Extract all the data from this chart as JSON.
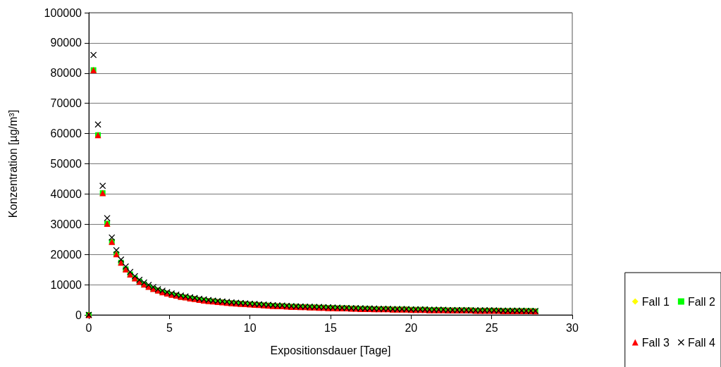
{
  "chart_data": {
    "type": "scatter",
    "xlabel": "Expositionsdauer [Tage]",
    "ylabel": "Konzentration [µg/m³]",
    "x": [
      0,
      0.29,
      0.57,
      0.86,
      1.14,
      1.43,
      1.71,
      2,
      2.29,
      2.57,
      2.86,
      3.14,
      3.43,
      3.71,
      4,
      4.29,
      4.57,
      4.86,
      5.14,
      5.43,
      5.71,
      6,
      6.29,
      6.57,
      6.86,
      7.14,
      7.43,
      7.71,
      8,
      8.29,
      8.57,
      8.86,
      9.14,
      9.43,
      9.71,
      10,
      10.29,
      10.57,
      10.86,
      11.14,
      11.43,
      11.71,
      12,
      12.29,
      12.57,
      12.86,
      13.14,
      13.43,
      13.71,
      14,
      14.29,
      14.57,
      14.86,
      15.14,
      15.43,
      15.71,
      16,
      16.29,
      16.57,
      16.86,
      17.14,
      17.43,
      17.71,
      18,
      18.29,
      18.57,
      18.86,
      19.14,
      19.43,
      19.71,
      20,
      20.29,
      20.57,
      20.86,
      21.14,
      21.43,
      21.71,
      22,
      22.29,
      22.57,
      22.86,
      23.14,
      23.43,
      23.71,
      24,
      24.29,
      24.57,
      24.86,
      25.14,
      25.43,
      25.71,
      26,
      26.29,
      26.57,
      26.86,
      27.14,
      27.43,
      27.71
    ],
    "series": [
      {
        "name": "Fall 1",
        "color": "#ffff00",
        "marker": "diamond",
        "values": [
          null,
          null,
          null,
          null,
          null,
          null,
          null,
          null,
          null,
          null,
          null,
          null,
          null,
          null,
          null,
          null,
          null,
          null,
          null,
          null,
          null,
          null,
          null,
          null,
          null,
          null,
          null,
          null,
          null,
          null,
          null,
          null,
          null,
          null,
          null,
          null,
          null,
          null,
          null,
          null,
          null,
          null,
          null,
          null,
          null,
          null,
          null,
          null,
          null,
          null,
          null,
          null,
          null,
          null,
          null,
          null,
          null,
          null,
          null,
          null,
          null,
          null,
          null,
          null,
          null,
          null,
          null,
          null,
          null,
          null,
          null,
          null,
          null,
          null,
          null,
          null,
          null,
          null,
          null,
          null,
          null,
          null,
          null,
          null,
          null,
          null,
          null,
          null,
          null,
          null,
          null,
          null,
          null,
          null,
          null,
          null,
          null,
          null
        ]
      },
      {
        "name": "Fall 2",
        "color": "#00ff00",
        "marker": "square",
        "values": [
          0,
          81000,
          59500,
          40300,
          30200,
          24200,
          20100,
          17300,
          15100,
          13400,
          12100,
          11000,
          10100,
          9300,
          8600,
          8100,
          7500,
          7100,
          6700,
          6400,
          6000,
          5800,
          5500,
          5300,
          5000,
          4800,
          4600,
          4500,
          4300,
          4200,
          4000,
          3900,
          3800,
          3700,
          3600,
          3500,
          3400,
          3300,
          3200,
          3100,
          3000,
          2900,
          2900,
          2800,
          2700,
          2700,
          2600,
          2600,
          2500,
          2500,
          2400,
          2400,
          2300,
          2300,
          2200,
          2200,
          2200,
          2100,
          2100,
          2000,
          2000,
          2000,
          1900,
          1900,
          1900,
          1900,
          1800,
          1800,
          1800,
          1800,
          1700,
          1700,
          1700,
          1700,
          1600,
          1600,
          1600,
          1600,
          1500,
          1500,
          1500,
          1500,
          1500,
          1500,
          1400,
          1400,
          1400,
          1400,
          1400,
          1400,
          1300,
          1300,
          1300,
          1300,
          1300,
          1300,
          1300,
          1200
        ]
      },
      {
        "name": "Fall 3",
        "color": "#ff0000",
        "marker": "triangle",
        "values": [
          0,
          81000,
          59500,
          40300,
          30200,
          24200,
          20100,
          17300,
          15100,
          13400,
          12100,
          11000,
          10100,
          9300,
          8600,
          8100,
          7500,
          7100,
          6700,
          6400,
          6000,
          5800,
          5500,
          5300,
          5000,
          4800,
          4600,
          4500,
          4300,
          4200,
          4000,
          3900,
          3800,
          3700,
          3600,
          3500,
          3400,
          3300,
          3200,
          3100,
          3000,
          2900,
          2900,
          2800,
          2700,
          2700,
          2600,
          2600,
          2500,
          2500,
          2400,
          2400,
          2300,
          2300,
          2200,
          2200,
          2200,
          2100,
          2100,
          2000,
          2000,
          2000,
          1900,
          1900,
          1900,
          1900,
          1800,
          1800,
          1800,
          1800,
          1700,
          1700,
          1700,
          1700,
          1600,
          1600,
          1600,
          1600,
          1500,
          1500,
          1500,
          1500,
          1500,
          1500,
          1400,
          1400,
          1400,
          1400,
          1400,
          1400,
          1300,
          1300,
          1300,
          1300,
          1300,
          1300,
          1300,
          1200
        ]
      },
      {
        "name": "Fall 4",
        "color": "#000000",
        "marker": "cross",
        "values": [
          0,
          86000,
          63000,
          42700,
          32000,
          25600,
          21400,
          18300,
          16000,
          14200,
          12800,
          11600,
          10700,
          9900,
          9200,
          8500,
          8000,
          7500,
          7100,
          6700,
          6400,
          6100,
          5800,
          5600,
          5300,
          5100,
          4900,
          4700,
          4600,
          4400,
          4300,
          4100,
          4000,
          3900,
          3800,
          3700,
          3600,
          3500,
          3400,
          3300,
          3200,
          3100,
          3100,
          3000,
          2900,
          2800,
          2800,
          2700,
          2700,
          2600,
          2600,
          2500,
          2500,
          2400,
          2400,
          2300,
          2300,
          2200,
          2200,
          2200,
          2100,
          2100,
          2100,
          2000,
          2000,
          2000,
          1900,
          1900,
          1900,
          1900,
          1800,
          1800,
          1800,
          1800,
          1700,
          1700,
          1700,
          1700,
          1600,
          1600,
          1600,
          1600,
          1600,
          1500,
          1500,
          1500,
          1500,
          1500,
          1500,
          1400,
          1400,
          1400,
          1400,
          1400,
          1400,
          1300,
          1300,
          1300
        ]
      }
    ],
    "xlim": [
      0,
      30
    ],
    "xticks": [
      0,
      5,
      10,
      15,
      20,
      25,
      30
    ],
    "ylim": [
      0,
      100000
    ],
    "yticks": [
      0,
      10000,
      20000,
      30000,
      40000,
      50000,
      60000,
      70000,
      80000,
      90000,
      100000
    ],
    "grid": "y",
    "legend": "bottom right"
  }
}
